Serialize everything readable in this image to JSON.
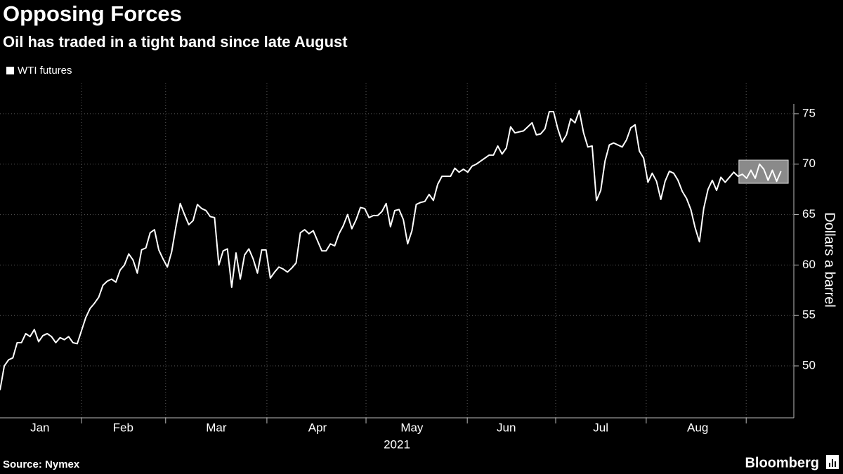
{
  "chart_data": {
    "type": "line",
    "title": "Opposing Forces",
    "subtitle": "Oil has traded in a tight band since late August",
    "ylabel": "Dollars a barrel",
    "x_year_label": "2021",
    "source": "Source: Nymex",
    "brand": "Bloomberg",
    "series": [
      {
        "name": "WTI futures",
        "color": "#ffffff",
        "values": [
          47.6,
          50.0,
          50.6,
          50.8,
          52.3,
          52.3,
          53.2,
          52.9,
          53.6,
          52.4,
          53.0,
          53.2,
          52.9,
          52.3,
          52.8,
          52.6,
          52.9,
          52.3,
          52.2,
          53.5,
          54.8,
          55.7,
          56.2,
          56.8,
          58.0,
          58.4,
          58.6,
          58.3,
          59.5,
          60.0,
          61.1,
          60.5,
          59.2,
          61.5,
          61.7,
          63.2,
          63.5,
          61.5,
          60.6,
          59.8,
          61.3,
          63.8,
          66.1,
          65.0,
          64.0,
          64.4,
          66.0,
          65.6,
          65.4,
          64.8,
          64.7,
          60.0,
          61.4,
          61.6,
          57.8,
          61.2,
          58.6,
          61.0,
          61.6,
          60.6,
          59.2,
          61.5,
          61.5,
          58.7,
          59.3,
          59.8,
          59.6,
          59.3,
          59.7,
          60.2,
          63.2,
          63.5,
          63.1,
          63.4,
          62.4,
          61.4,
          61.4,
          62.1,
          61.9,
          63.1,
          63.9,
          65.0,
          63.6,
          64.5,
          65.7,
          65.6,
          64.7,
          64.9,
          64.9,
          65.3,
          66.1,
          63.8,
          65.4,
          65.5,
          64.5,
          62.1,
          63.4,
          66.0,
          66.2,
          66.3,
          67.0,
          66.4,
          68.0,
          68.8,
          68.8,
          68.8,
          69.6,
          69.2,
          69.5,
          69.2,
          69.8,
          70.0,
          70.3,
          70.6,
          70.9,
          70.9,
          71.8,
          71.0,
          71.6,
          73.7,
          73.1,
          73.2,
          73.3,
          73.7,
          74.1,
          72.9,
          73.0,
          73.5,
          75.2,
          75.2,
          73.5,
          72.2,
          72.9,
          74.5,
          74.1,
          75.3,
          73.1,
          71.7,
          71.8,
          66.4,
          67.4,
          70.3,
          71.9,
          72.1,
          71.9,
          71.7,
          72.4,
          73.6,
          73.9,
          71.3,
          70.6,
          68.2,
          69.1,
          68.3,
          66.5,
          68.3,
          69.3,
          69.1,
          68.4,
          67.3,
          66.6,
          65.5,
          63.7,
          62.3,
          65.6,
          67.5,
          68.4,
          67.4,
          68.7,
          68.2,
          68.7,
          69.2,
          68.8,
          69.0,
          68.6,
          69.4,
          68.6,
          70.0,
          69.5,
          68.4,
          69.4,
          68.3,
          69.3
        ]
      }
    ],
    "xlim": [
      0,
      185
    ],
    "xgrid": [
      19,
      38.6,
      62.2,
      85.3,
      108.9,
      129.5,
      150.6,
      173.9
    ],
    "xtick_labels": [
      {
        "value": 9.3,
        "label": "Jan"
      },
      {
        "value": 28.7,
        "label": "Feb"
      },
      {
        "value": 50.4,
        "label": "Mar"
      },
      {
        "value": 74,
        "label": "Apr"
      },
      {
        "value": 96,
        "label": "May"
      },
      {
        "value": 118,
        "label": "Jun"
      },
      {
        "value": 140,
        "label": "Jul"
      },
      {
        "value": 162.6,
        "label": "Aug"
      }
    ],
    "ylim": [
      44.85,
      75.97
    ],
    "yticks": [
      50,
      55,
      60,
      65,
      70,
      75
    ],
    "grid": true,
    "highlight": {
      "xlim": [
        172.2,
        183.7
      ],
      "ylim": [
        68.1,
        70.4
      ],
      "color": "#8a8a8a"
    }
  }
}
